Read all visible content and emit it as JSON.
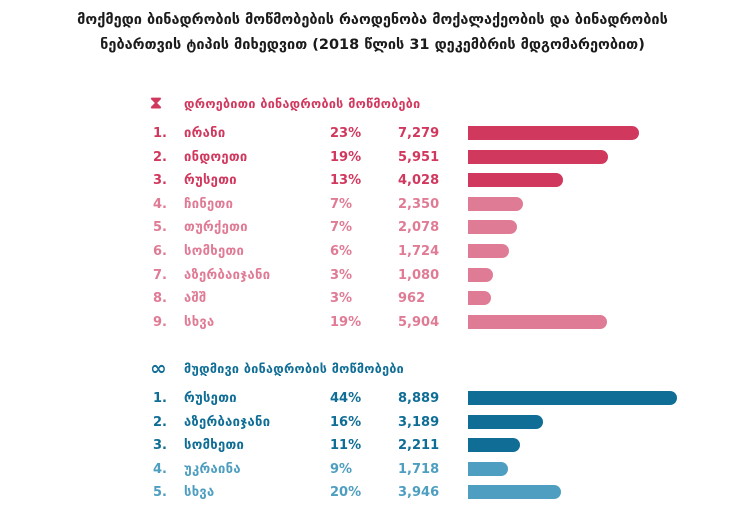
{
  "title_line1": "მოქმედი ბინადრობის მოწმობების რაოდენობა მოქალაქეობის და ბინადრობის",
  "title_line2": "ნებართვის ტიპის მიხედვით (2018 წლის 31 დეკემბრის მდგომარეობით)",
  "colors": {
    "temp_dark": "#d1385e",
    "temp_light": "#e07b95",
    "perm_dark": "#0f6d96",
    "perm_light": "#4d9ec0"
  },
  "chart_data": [
    {
      "type": "bar",
      "title": "დროებითი ბინადრობის მოწმობები",
      "icon": "hourglass-icon",
      "categories": [
        "ირანი",
        "ინდოეთი",
        "რუსეთი",
        "ჩინეთი",
        "თურქეთი",
        "სომხეთი",
        "აზერბაიჯანი",
        "აშშ",
        "სხვა"
      ],
      "numbers": [
        "1.",
        "2.",
        "3.",
        "4.",
        "5.",
        "6.",
        "7.",
        "8.",
        "9."
      ],
      "percents": [
        "23%",
        "19%",
        "13%",
        "7%",
        "7%",
        "6%",
        "3%",
        "3%",
        "19%"
      ],
      "values": [
        7279,
        5951,
        4028,
        2350,
        2078,
        1724,
        1080,
        962,
        5904
      ],
      "value_labels": [
        "7,279",
        "5,951",
        "4,028",
        "2,350",
        "2,078",
        "1,724",
        "1,080",
        "962",
        "5,904"
      ]
    },
    {
      "type": "bar",
      "title": "მუდმივი ბინადრობის მოწმობები",
      "icon": "infinity-icon",
      "categories": [
        "რუსეთი",
        "აზერბაიჯანი",
        "სომხეთი",
        "უკრაინა",
        "სხვა"
      ],
      "numbers": [
        "1.",
        "2.",
        "3.",
        "4.",
        "5."
      ],
      "percents": [
        "44%",
        "16%",
        "11%",
        "9%",
        "20%"
      ],
      "values": [
        8889,
        3189,
        2211,
        1718,
        3946
      ],
      "value_labels": [
        "8,889",
        "3,189",
        "2,211",
        "1,718",
        "3,946"
      ]
    }
  ]
}
